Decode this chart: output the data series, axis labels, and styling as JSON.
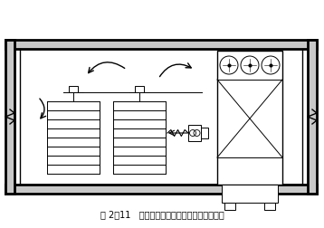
{
  "title": "图 2－11   采用落地式冷风机的盘装食品冻结间",
  "bg_color": "#ffffff",
  "line_color": "#000000"
}
